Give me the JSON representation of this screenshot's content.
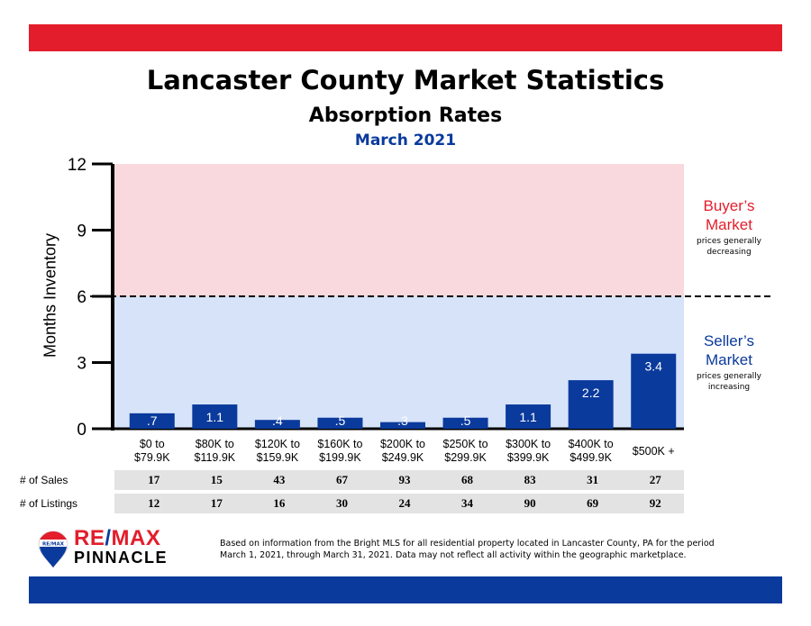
{
  "header": {
    "title": "Lancaster County Market Statistics",
    "subtitle": "Absorption Rates",
    "period": "March 2021"
  },
  "colors": {
    "brand_red": "#e31d2b",
    "brand_blue": "#0a3a9c",
    "buyer_zone": "#f9d9dd",
    "seller_zone": "#d6e3f9",
    "bar": "#0a3a9c"
  },
  "chart_data": {
    "type": "bar",
    "ylabel": "Months Inventory",
    "ylim": [
      0,
      12
    ],
    "yticks": [
      "0",
      "3",
      "6",
      "9",
      "12"
    ],
    "threshold": 6,
    "categories": [
      "$0 to $79.9K",
      "$80K to $119.9K",
      "$120K to $159.9K",
      "$160K to $199.9K",
      "$200K to $249.9K",
      "$250K to $299.9K",
      "$300K to $399.9K",
      "$400K to $499.9K",
      "$500K +"
    ],
    "values": [
      0.7,
      1.1,
      0.4,
      0.5,
      0.3,
      0.5,
      1.1,
      2.2,
      3.4
    ],
    "data_labels": [
      ".7",
      "1.1",
      ".4",
      ".5",
      ".3",
      ".5",
      "1.1",
      "2.2",
      "3.4"
    ],
    "tick_labels": [
      [
        "$0 to",
        "$79.9K"
      ],
      [
        "$80K to",
        "$119.9K"
      ],
      [
        "$120K to",
        "$159.9K"
      ],
      [
        "$160K to",
        "$199.9K"
      ],
      [
        "$200K to",
        "$249.9K"
      ],
      [
        "$250K to",
        "$299.9K"
      ],
      [
        "$300K to",
        "$399.9K"
      ],
      [
        "$400K to",
        "$499.9K"
      ],
      [
        "$500K +"
      ]
    ]
  },
  "zones": {
    "buyer": {
      "title_line1": "Buyer’s",
      "title_line2": "Market",
      "note_line1": "prices generally",
      "note_line2": "decreasing"
    },
    "seller": {
      "title_line1": "Seller’s",
      "title_line2": "Market",
      "note_line1": "prices generally",
      "note_line2": "increasing"
    }
  },
  "table": {
    "sales_label": "# of Sales",
    "listings_label": "# of Listings",
    "sales": [
      "17",
      "15",
      "43",
      "67",
      "93",
      "68",
      "83",
      "31",
      "27"
    ],
    "listings": [
      "12",
      "17",
      "16",
      "30",
      "24",
      "34",
      "90",
      "69",
      "92"
    ]
  },
  "logo": {
    "badge_text": "RE/MAX",
    "brand_left": "RE",
    "brand_slash": "/",
    "brand_right": "MAX",
    "office": "PINNACLE"
  },
  "footnote": {
    "line1": "Based on information from the Bright MLS for all residential property located in Lancaster County, PA for the period",
    "line2": "March 1, 2021, through March 31, 2021.  Data may not reflect all activity within the geographic marketplace."
  }
}
